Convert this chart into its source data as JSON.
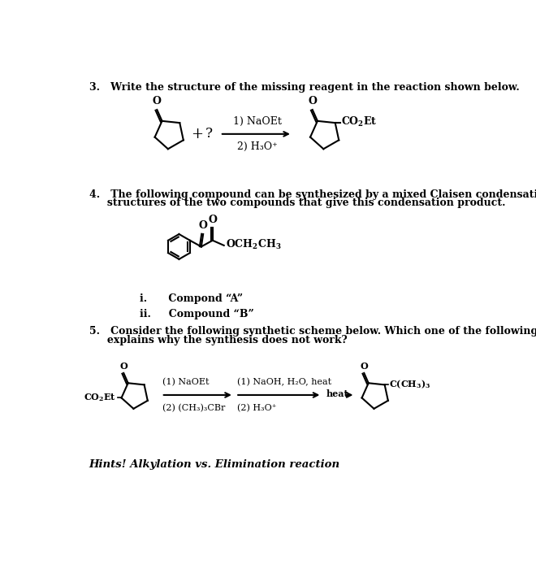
{
  "bg_color": "#ffffff",
  "q3_title": "3.   Write the structure of the missing reagent in the reaction shown below.",
  "q4_title1": "4.   The following compound can be synthesized by a mixed Claisen condensation. Write the",
  "q4_title2": "     structures of the two compounds that give this condensation product.",
  "q5_title1": "5.   Consider the following synthetic scheme below. Which one of the following best",
  "q5_title2": "     explains why the synthesis does not work?",
  "item_i": "i.      Compond “A”",
  "item_ii": "ii.     Compound “B”",
  "hint": "Hints! Alkylation vs. Elimination reaction"
}
